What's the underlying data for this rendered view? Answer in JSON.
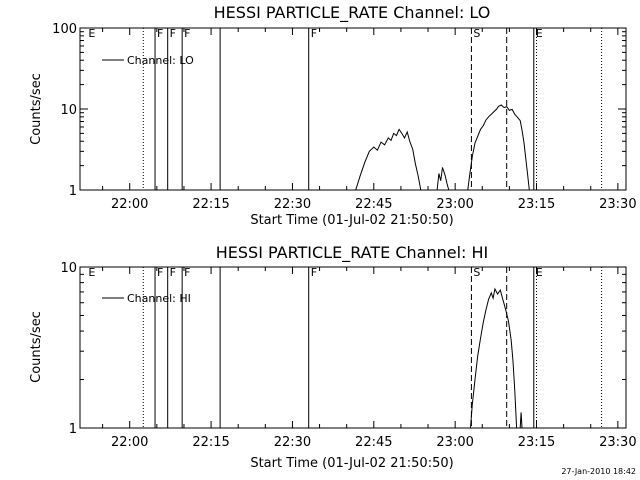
{
  "chart_data": [
    {
      "type": "line",
      "title": "HESSI PARTICLE_RATE Channel: LO",
      "xlabel": "Start Time (01-Jul-02 21:50:50)",
      "ylabel": "Counts/sec",
      "yscale": "log",
      "xlim": [
        "21:50:50",
        "23:31:30"
      ],
      "ylim": [
        1,
        100
      ],
      "xticks": [
        "22:00",
        "22:15",
        "22:30",
        "22:45",
        "23:00",
        "23:15",
        "23:30"
      ],
      "yticks": [
        {
          "value": 1,
          "label": "1"
        },
        {
          "value": 10,
          "label": "10"
        },
        {
          "value": 100,
          "label": "100"
        }
      ],
      "legend": {
        "placement": "top-left",
        "entries": [
          "Channel: LO"
        ]
      },
      "grid": false,
      "series": [
        {
          "name": "Channel: LO",
          "segments": [
            [
              [
                "22:41:40",
                1.0
              ],
              [
                "22:42:30",
                1.5
              ],
              [
                "22:43:20",
                2.2
              ],
              [
                "22:44:10",
                3.0
              ],
              [
                "22:45:00",
                3.4
              ],
              [
                "22:45:40",
                3.1
              ],
              [
                "22:46:20",
                3.9
              ],
              [
                "22:47:00",
                3.6
              ],
              [
                "22:47:40",
                4.4
              ],
              [
                "22:48:10",
                4.1
              ],
              [
                "22:48:40",
                5.0
              ],
              [
                "22:49:10",
                4.7
              ],
              [
                "22:49:40",
                5.6
              ],
              [
                "22:50:10",
                5.0
              ],
              [
                "22:50:40",
                4.4
              ],
              [
                "22:51:10",
                5.2
              ],
              [
                "22:51:40",
                3.9
              ],
              [
                "22:52:10",
                3.2
              ],
              [
                "22:52:40",
                2.1
              ],
              [
                "22:53:10",
                1.5
              ],
              [
                "22:53:40",
                1.0
              ]
            ],
            [
              [
                "22:56:40",
                1.0
              ],
              [
                "22:57:00",
                1.6
              ],
              [
                "22:57:20",
                1.3
              ],
              [
                "22:57:40",
                1.9
              ],
              [
                "22:58:10",
                1.5
              ],
              [
                "22:58:30",
                1.2
              ],
              [
                "22:58:50",
                1.0
              ]
            ],
            [
              [
                "23:02:20",
                1.0
              ],
              [
                "23:02:40",
                1.5
              ],
              [
                "23:03:10",
                2.6
              ],
              [
                "23:03:40",
                3.8
              ],
              [
                "23:04:10",
                4.6
              ],
              [
                "23:04:40",
                5.6
              ],
              [
                "23:05:10",
                6.2
              ],
              [
                "23:05:40",
                7.3
              ],
              [
                "23:06:10",
                8.0
              ],
              [
                "23:06:40",
                8.6
              ],
              [
                "23:07:10",
                9.3
              ],
              [
                "23:07:40",
                10.0
              ],
              [
                "23:08:00",
                10.8
              ],
              [
                "23:08:30",
                11.2
              ],
              [
                "23:09:00",
                10.4
              ],
              [
                "23:09:30",
                10.7
              ],
              [
                "23:10:00",
                9.6
              ],
              [
                "23:10:30",
                9.9
              ],
              [
                "23:11:00",
                8.6
              ],
              [
                "23:11:30",
                7.9
              ],
              [
                "23:12:00",
                7.2
              ],
              [
                "23:12:20",
                5.5
              ],
              [
                "23:12:40",
                3.9
              ],
              [
                "23:13:00",
                2.5
              ],
              [
                "23:13:20",
                1.6
              ],
              [
                "23:13:40",
                1.0
              ]
            ]
          ]
        }
      ],
      "markers": [
        {
          "time": "21:52:00",
          "label": "E",
          "style": "label"
        },
        {
          "time": "22:02:30",
          "label": "",
          "style": "dotted"
        },
        {
          "time": "22:04:40",
          "label": "F",
          "style": "solid"
        },
        {
          "time": "22:07:00",
          "label": "F",
          "style": "solid"
        },
        {
          "time": "22:09:40",
          "label": "F",
          "style": "solid"
        },
        {
          "time": "22:16:40",
          "label": "",
          "style": "solid"
        },
        {
          "time": "22:33:00",
          "label": "F",
          "style": "solid"
        },
        {
          "time": "23:03:00",
          "label": "S",
          "style": "dashed"
        },
        {
          "time": "23:09:30",
          "label": "",
          "style": "dashed"
        },
        {
          "time": "23:14:30",
          "label": "E",
          "style": "solid"
        },
        {
          "time": "23:15:00",
          "label": "",
          "style": "dotted"
        },
        {
          "time": "23:27:00",
          "label": "",
          "style": "dotted"
        }
      ]
    },
    {
      "type": "line",
      "title": "HESSI PARTICLE_RATE Channel: HI",
      "xlabel": "Start Time (01-Jul-02 21:50:50)",
      "ylabel": "Counts/sec",
      "yscale": "log",
      "xlim": [
        "21:50:50",
        "23:31:30"
      ],
      "ylim": [
        1,
        10
      ],
      "xticks": [
        "22:00",
        "22:15",
        "22:30",
        "22:45",
        "23:00",
        "23:15",
        "23:30"
      ],
      "yticks": [
        {
          "value": 1,
          "label": "1"
        },
        {
          "value": 10,
          "label": "10"
        }
      ],
      "legend": {
        "placement": "top-left",
        "entries": [
          "Channel: HI"
        ]
      },
      "grid": false,
      "series": [
        {
          "name": "Channel: HI",
          "segments": [
            [
              [
                "23:02:50",
                1.0
              ],
              [
                "23:03:10",
                1.4
              ],
              [
                "23:03:40",
                2.0
              ],
              [
                "23:04:10",
                2.8
              ],
              [
                "23:04:40",
                3.6
              ],
              [
                "23:05:10",
                4.5
              ],
              [
                "23:05:40",
                5.4
              ],
              [
                "23:06:10",
                6.3
              ],
              [
                "23:06:40",
                6.9
              ],
              [
                "23:07:00",
                6.4
              ],
              [
                "23:07:20",
                7.3
              ],
              [
                "23:07:50",
                6.8
              ],
              [
                "23:08:20",
                7.2
              ],
              [
                "23:08:50",
                6.2
              ],
              [
                "23:09:20",
                5.4
              ],
              [
                "23:09:50",
                4.6
              ],
              [
                "23:10:20",
                3.5
              ],
              [
                "23:10:40",
                2.6
              ],
              [
                "23:11:00",
                1.7
              ],
              [
                "23:11:20",
                1.0
              ]
            ],
            [
              [
                "23:12:00",
                1.0
              ],
              [
                "23:12:10",
                1.25
              ],
              [
                "23:12:20",
                1.0
              ]
            ]
          ]
        }
      ],
      "markers": [
        {
          "time": "21:52:00",
          "label": "E",
          "style": "label"
        },
        {
          "time": "22:02:30",
          "label": "",
          "style": "dotted"
        },
        {
          "time": "22:04:40",
          "label": "F",
          "style": "solid"
        },
        {
          "time": "22:07:00",
          "label": "F",
          "style": "solid"
        },
        {
          "time": "22:09:40",
          "label": "F",
          "style": "solid"
        },
        {
          "time": "22:16:40",
          "label": "",
          "style": "solid"
        },
        {
          "time": "22:33:00",
          "label": "F",
          "style": "solid"
        },
        {
          "time": "23:03:00",
          "label": "S",
          "style": "dashed"
        },
        {
          "time": "23:09:30",
          "label": "",
          "style": "dashed"
        },
        {
          "time": "23:14:30",
          "label": "E",
          "style": "solid"
        },
        {
          "time": "23:15:00",
          "label": "",
          "style": "dotted"
        },
        {
          "time": "23:27:00",
          "label": "",
          "style": "dotted"
        }
      ]
    }
  ],
  "footer": {
    "timestamp": "27-Jan-2010 18:42"
  }
}
